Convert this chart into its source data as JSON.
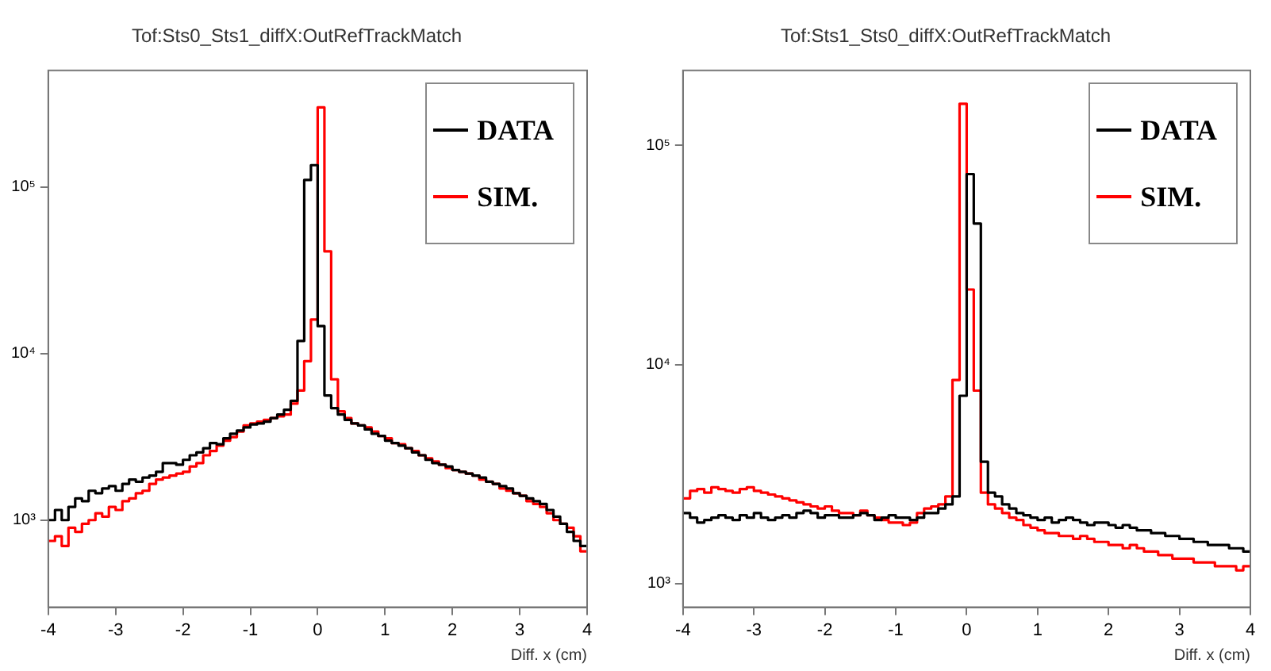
{
  "chart_data": [
    {
      "type": "histogram",
      "title": "Tof:Sts0_Sts1_diffX:OutRefTrackMatch",
      "xlabel": "Diff. x (cm)",
      "log": "y",
      "grid": false,
      "legend": "top right",
      "xlim": [
        -4,
        4
      ],
      "xticks": [
        -4,
        -3,
        -2,
        -1,
        0,
        1,
        2,
        3,
        4
      ],
      "ylim": [
        300,
        500000
      ],
      "yticks": [
        {
          "value": 1000,
          "label": "10³"
        },
        {
          "value": 10000,
          "label": "10⁴"
        },
        {
          "value": 100000,
          "label": "10⁵"
        }
      ],
      "bins": [
        -4,
        -3.9,
        -3.8,
        -3.7,
        -3.6,
        -3.5,
        -3.4,
        -3.3,
        -3.2,
        -3.1,
        -3,
        -2.9,
        -2.8,
        -2.7,
        -2.6,
        -2.5,
        -2.4,
        -2.3,
        -2.2,
        -2.1,
        -2,
        -1.9,
        -1.8,
        -1.7,
        -1.6,
        -1.5,
        -1.4,
        -1.3,
        -1.2,
        -1.1,
        -1,
        -0.9,
        -0.8,
        -0.7,
        -0.6,
        -0.5,
        -0.4,
        -0.3,
        -0.2,
        -0.1,
        0,
        0.1,
        0.2,
        0.3,
        0.4,
        0.5,
        0.6,
        0.7,
        0.8,
        0.9,
        1,
        1.1,
        1.2,
        1.3,
        1.4,
        1.5,
        1.6,
        1.7,
        1.8,
        1.9,
        2,
        2.1,
        2.2,
        2.3,
        2.4,
        2.5,
        2.6,
        2.7,
        2.8,
        2.9,
        3,
        3.1,
        3.2,
        3.3,
        3.4,
        3.5,
        3.6,
        3.7,
        3.8,
        3.9,
        4
      ],
      "series": [
        {
          "name": "DATA",
          "color": "#000000",
          "values": [
            1000,
            1150,
            1000,
            1200,
            1350,
            1300,
            1500,
            1450,
            1550,
            1600,
            1500,
            1650,
            1750,
            1700,
            1800,
            1850,
            1950,
            2200,
            2200,
            2150,
            2300,
            2450,
            2550,
            2700,
            2900,
            2850,
            3100,
            3300,
            3450,
            3600,
            3750,
            3800,
            3900,
            4100,
            4300,
            4600,
            5200,
            11900,
            110000,
            135000,
            14600,
            5600,
            4700,
            4300,
            4000,
            3800,
            3700,
            3500,
            3300,
            3200,
            3000,
            2900,
            2800,
            2700,
            2550,
            2450,
            2300,
            2200,
            2150,
            2100,
            2000,
            1950,
            1900,
            1850,
            1800,
            1700,
            1650,
            1600,
            1550,
            1450,
            1400,
            1350,
            1300,
            1250,
            1150,
            1050,
            950,
            850,
            750,
            700
          ]
        },
        {
          "name": "SIM.",
          "color": "#ff0000",
          "values": [
            750,
            800,
            700,
            900,
            850,
            950,
            1000,
            1100,
            1050,
            1200,
            1150,
            1300,
            1350,
            1450,
            1500,
            1650,
            1750,
            1800,
            1850,
            1900,
            1950,
            2100,
            2200,
            2450,
            2600,
            2800,
            3000,
            3150,
            3400,
            3700,
            3800,
            3900,
            4000,
            4100,
            4200,
            4300,
            5000,
            6000,
            9000,
            16000,
            300000,
            41000,
            7000,
            4500,
            4100,
            3800,
            3700,
            3600,
            3400,
            3200,
            3100,
            2900,
            2850,
            2700,
            2600,
            2450,
            2350,
            2250,
            2150,
            2050,
            2000,
            1950,
            1900,
            1850,
            1750,
            1700,
            1650,
            1550,
            1500,
            1450,
            1400,
            1300,
            1250,
            1200,
            1100,
            1000,
            950,
            900,
            800,
            650
          ]
        }
      ]
    },
    {
      "type": "histogram",
      "title": "Tof:Sts1_Sts0_diffX:OutRefTrackMatch",
      "xlabel": "Diff. x (cm)",
      "log": "y",
      "grid": false,
      "legend": "top right",
      "xlim": [
        -4,
        4
      ],
      "xticks": [
        -4,
        -3,
        -2,
        -1,
        0,
        1,
        2,
        3,
        4
      ],
      "ylim": [
        780,
        220000
      ],
      "yticks": [
        {
          "value": 1000,
          "label": "10³"
        },
        {
          "value": 10000,
          "label": "10⁴"
        },
        {
          "value": 100000,
          "label": "10⁵"
        }
      ],
      "bins": [
        -4,
        -3.9,
        -3.8,
        -3.7,
        -3.6,
        -3.5,
        -3.4,
        -3.3,
        -3.2,
        -3.1,
        -3,
        -2.9,
        -2.8,
        -2.7,
        -2.6,
        -2.5,
        -2.4,
        -2.3,
        -2.2,
        -2.1,
        -2,
        -1.9,
        -1.8,
        -1.7,
        -1.6,
        -1.5,
        -1.4,
        -1.3,
        -1.2,
        -1.1,
        -1,
        -0.9,
        -0.8,
        -0.7,
        -0.6,
        -0.5,
        -0.4,
        -0.3,
        -0.2,
        -0.1,
        0,
        0.1,
        0.2,
        0.3,
        0.4,
        0.5,
        0.6,
        0.7,
        0.8,
        0.9,
        1,
        1.1,
        1.2,
        1.3,
        1.4,
        1.5,
        1.6,
        1.7,
        1.8,
        1.9,
        2,
        2.1,
        2.2,
        2.3,
        2.4,
        2.5,
        2.6,
        2.7,
        2.8,
        2.9,
        3,
        3.1,
        3.2,
        3.3,
        3.4,
        3.5,
        3.6,
        3.7,
        3.8,
        3.9,
        4
      ],
      "series": [
        {
          "name": "DATA",
          "color": "#000000",
          "values": [
            2100,
            2000,
            1900,
            1950,
            2000,
            2050,
            2000,
            1950,
            2050,
            2000,
            2100,
            2000,
            1950,
            2000,
            2050,
            2000,
            2100,
            2150,
            2100,
            2000,
            2050,
            2050,
            2000,
            2000,
            2050,
            2100,
            2050,
            1950,
            2000,
            2050,
            2000,
            2000,
            1950,
            2000,
            2100,
            2100,
            2200,
            2300,
            2500,
            7200,
            74000,
            44000,
            3600,
            2600,
            2500,
            2300,
            2200,
            2100,
            2050,
            2000,
            1950,
            2000,
            1900,
            1950,
            2000,
            1950,
            1900,
            1850,
            1900,
            1900,
            1850,
            1800,
            1850,
            1800,
            1750,
            1750,
            1700,
            1700,
            1650,
            1650,
            1600,
            1600,
            1550,
            1550,
            1500,
            1500,
            1500,
            1450,
            1450,
            1400
          ]
        },
        {
          "name": "SIM.",
          "color": "#ff0000",
          "values": [
            2450,
            2650,
            2700,
            2600,
            2750,
            2700,
            2650,
            2600,
            2700,
            2750,
            2650,
            2600,
            2550,
            2500,
            2450,
            2400,
            2350,
            2300,
            2250,
            2200,
            2250,
            2150,
            2100,
            2100,
            2050,
            2150,
            2050,
            2000,
            1950,
            1900,
            1900,
            1850,
            1900,
            2100,
            2200,
            2250,
            2300,
            2500,
            8500,
            155000,
            22000,
            7600,
            2600,
            2300,
            2200,
            2100,
            2000,
            1950,
            1850,
            1800,
            1750,
            1700,
            1700,
            1650,
            1650,
            1600,
            1650,
            1600,
            1550,
            1550,
            1500,
            1500,
            1450,
            1500,
            1450,
            1400,
            1400,
            1350,
            1350,
            1300,
            1300,
            1300,
            1250,
            1250,
            1250,
            1200,
            1200,
            1200,
            1150,
            1200
          ]
        }
      ]
    }
  ]
}
